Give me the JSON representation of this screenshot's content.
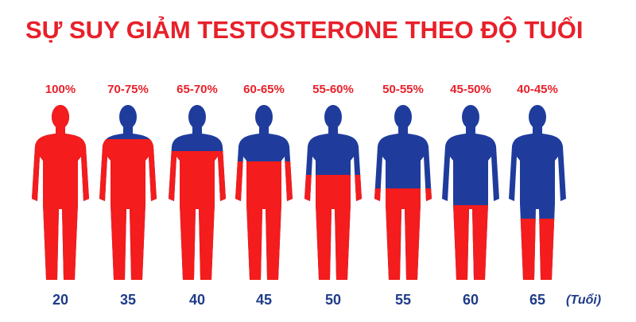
{
  "title": "SỰ SUY GIẢM TESTOSTERONE THEO ĐỘ TUỔI",
  "figures": [
    {
      "percent": "100%",
      "age": "20"
    },
    {
      "percent": "70-75%",
      "age": "35"
    },
    {
      "percent": "65-70%",
      "age": "40"
    },
    {
      "percent": "60-65%",
      "age": "45"
    },
    {
      "percent": "55-60%",
      "age": "50"
    },
    {
      "percent": "50-55%",
      "age": "55"
    },
    {
      "percent": "45-50%",
      "age": "60"
    },
    {
      "percent": "40-45%",
      "age": "65"
    }
  ],
  "unit": "(Tuổi)"
}
